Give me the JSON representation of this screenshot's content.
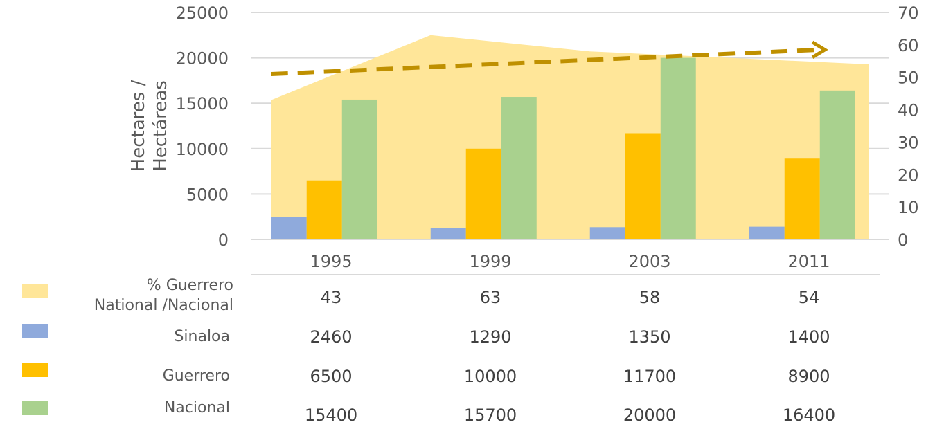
{
  "chart_data": {
    "type": "bar",
    "categories": [
      "1995",
      "1999",
      "2003",
      "2011"
    ],
    "ylabel_lines": [
      "Hectares /",
      "Hectáreas"
    ],
    "ylim": [
      0,
      25000
    ],
    "y_ticks": [
      "0",
      "5000",
      "10000",
      "15000",
      "20000",
      "25000"
    ],
    "y2lim": [
      0,
      70
    ],
    "y2_ticks": [
      "0",
      "10",
      "20",
      "30",
      "40",
      "50",
      "60",
      "70"
    ],
    "grid": true,
    "area_series": {
      "name_lines": [
        "% Guerrero",
        "National /Nacional"
      ],
      "axis": "secondary",
      "color": "#FFE699",
      "values": [
        43,
        63,
        58,
        54
      ],
      "display": [
        "43",
        "63",
        "58",
        "54"
      ]
    },
    "series": [
      {
        "name": "Sinaloa",
        "color": "#8FAADC",
        "values": [
          2460,
          1290,
          1350,
          1400
        ],
        "display": [
          "2460",
          "1290",
          "1350",
          "1400"
        ]
      },
      {
        "name": "Guerrero",
        "color": "#FFC000",
        "values": [
          6500,
          10000,
          11700,
          8900
        ],
        "display": [
          "6500",
          "10000",
          "11700",
          "8900"
        ]
      },
      {
        "name": "Nacional",
        "color": "#A9D18E",
        "values": [
          15400,
          15700,
          20000,
          16400
        ],
        "display": [
          "15400",
          "15700",
          "20000",
          "16400"
        ]
      }
    ],
    "trend_arrow": {
      "style": "dashed",
      "color": "#BF9000",
      "from_y2": 51,
      "to_y2": 58.5
    }
  }
}
